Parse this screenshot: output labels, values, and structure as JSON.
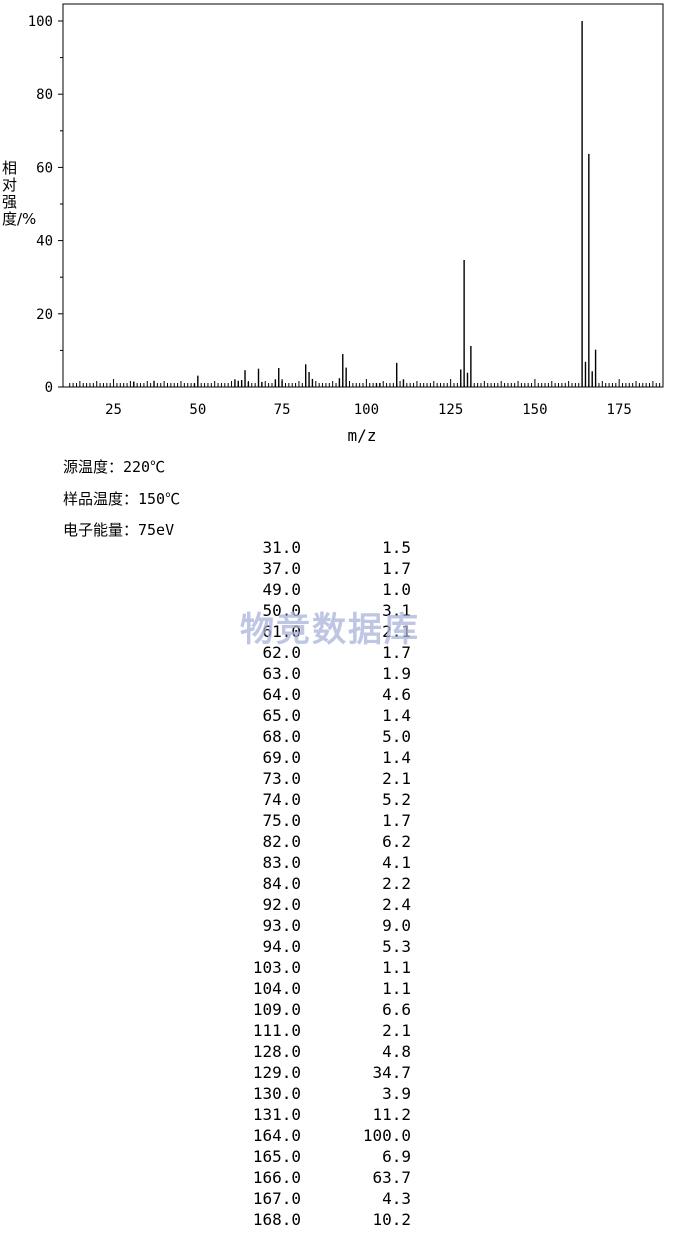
{
  "chart_data": {
    "type": "bar",
    "title": "",
    "xlabel": "m/z",
    "ylabel": "相对强度/%",
    "xlim": [
      10,
      188
    ],
    "ylim": [
      0,
      100
    ],
    "x_ticks": [
      "25",
      "50",
      "75",
      "100",
      "125",
      "150",
      "175"
    ],
    "y_ticks": [
      "0",
      "20",
      "40",
      "60",
      "80",
      "100"
    ],
    "grid": false,
    "peaks": [
      {
        "mz": "31.0",
        "abundance": "1.5"
      },
      {
        "mz": "37.0",
        "abundance": "1.7"
      },
      {
        "mz": "49.0",
        "abundance": "1.0"
      },
      {
        "mz": "50.0",
        "abundance": "3.1"
      },
      {
        "mz": "61.0",
        "abundance": "2.1"
      },
      {
        "mz": "62.0",
        "abundance": "1.7"
      },
      {
        "mz": "63.0",
        "abundance": "1.9"
      },
      {
        "mz": "64.0",
        "abundance": "4.6"
      },
      {
        "mz": "65.0",
        "abundance": "1.4"
      },
      {
        "mz": "68.0",
        "abundance": "5.0"
      },
      {
        "mz": "69.0",
        "abundance": "1.4"
      },
      {
        "mz": "73.0",
        "abundance": "2.1"
      },
      {
        "mz": "74.0",
        "abundance": "5.2"
      },
      {
        "mz": "75.0",
        "abundance": "1.7"
      },
      {
        "mz": "82.0",
        "abundance": "6.2"
      },
      {
        "mz": "83.0",
        "abundance": "4.1"
      },
      {
        "mz": "84.0",
        "abundance": "2.2"
      },
      {
        "mz": "92.0",
        "abundance": "2.4"
      },
      {
        "mz": "93.0",
        "abundance": "9.0"
      },
      {
        "mz": "94.0",
        "abundance": "5.3"
      },
      {
        "mz": "103.0",
        "abundance": "1.1"
      },
      {
        "mz": "104.0",
        "abundance": "1.1"
      },
      {
        "mz": "109.0",
        "abundance": "6.6"
      },
      {
        "mz": "111.0",
        "abundance": "2.1"
      },
      {
        "mz": "128.0",
        "abundance": "4.8"
      },
      {
        "mz": "129.0",
        "abundance": "34.7"
      },
      {
        "mz": "130.0",
        "abundance": "3.9"
      },
      {
        "mz": "131.0",
        "abundance": "11.2"
      },
      {
        "mz": "164.0",
        "abundance": "100.0"
      },
      {
        "mz": "165.0",
        "abundance": "6.9"
      },
      {
        "mz": "166.0",
        "abundance": "63.7"
      },
      {
        "mz": "167.0",
        "abundance": "4.3"
      },
      {
        "mz": "168.0",
        "abundance": "10.2"
      }
    ]
  },
  "conditions": {
    "source_temp": "源温度：220℃",
    "sample_temp": "样品温度：150℃",
    "electron_energy": "电子能量：75eV"
  },
  "watermark": "物竞数据库",
  "colors": {
    "axis": "#000000",
    "bar": "#000000",
    "watermark": "#a9b3dc"
  }
}
